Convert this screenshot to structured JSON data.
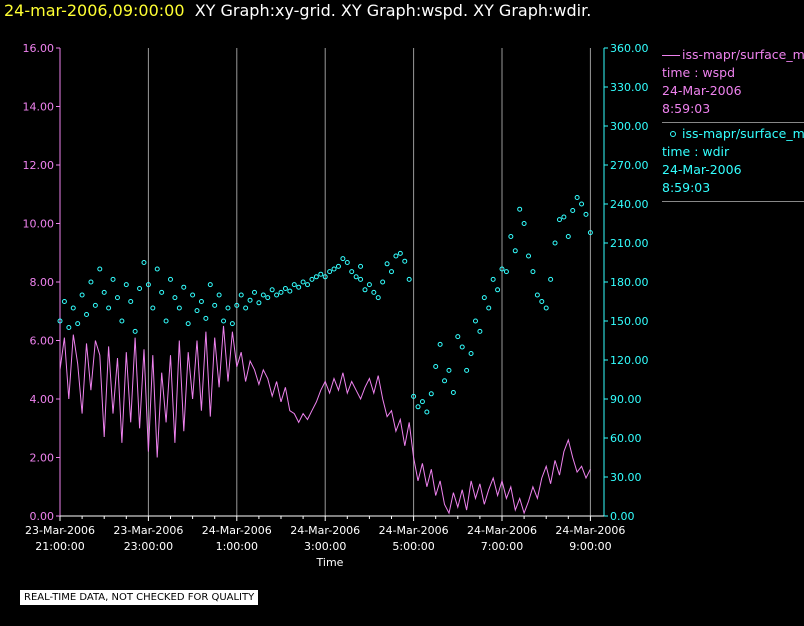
{
  "title": {
    "date": "24-mar-2006,09:00:00",
    "rest": "XY Graph:xy-grid.  XY Graph:wspd.  XY Graph:wdir."
  },
  "legend": {
    "series1": {
      "name": "iss-mapr/surface_m",
      "line2": "time : wspd",
      "line3": "24-Mar-2006",
      "line4": "8:59:03"
    },
    "series2": {
      "name": "iss-mapr/surface_m",
      "line2": "time : wdir",
      "line3": "24-Mar-2006",
      "line4": "8:59:03"
    }
  },
  "quality_note": "REAL-TIME DATA, NOT CHECKED FOR QUALITY",
  "colors": {
    "wspd": "#ee82ee",
    "wdir": "#33ffff",
    "grid": "#9a9a9a",
    "axis": "#ffffff",
    "date": "#ffff33"
  },
  "chart_data": {
    "type": "line",
    "xlabel": "Time",
    "x_ticks": [
      {
        "hours": 0,
        "date": "23-Mar-2006",
        "time": "21:00:00"
      },
      {
        "hours": 2,
        "date": "23-Mar-2006",
        "time": "23:00:00"
      },
      {
        "hours": 4,
        "date": "24-Mar-2006",
        "time": "1:00:00"
      },
      {
        "hours": 6,
        "date": "24-Mar-2006",
        "time": "3:00:00"
      },
      {
        "hours": 8,
        "date": "24-Mar-2006",
        "time": "5:00:00"
      },
      {
        "hours": 10,
        "date": "24-Mar-2006",
        "time": "7:00:00"
      },
      {
        "hours": 12,
        "date": "24-Mar-2006",
        "time": "9:00:00"
      }
    ],
    "xlim_hours": [
      0,
      12.2
    ],
    "y_left": {
      "ylim": [
        0,
        16
      ],
      "ticks": [
        "0.00",
        "2.00",
        "4.00",
        "6.00",
        "8.00",
        "10.00",
        "12.00",
        "14.00",
        "16.00"
      ]
    },
    "y_right": {
      "ylim": [
        0,
        360
      ],
      "ticks": [
        "0.00",
        "30.00",
        "60.00",
        "90.00",
        "120.00",
        "150.00",
        "180.00",
        "210.00",
        "240.00",
        "270.00",
        "300.00",
        "330.00",
        "360.00"
      ]
    },
    "grid": "vertical",
    "series": [
      {
        "key": "wspd",
        "axis": "left",
        "style": "line",
        "points": [
          [
            0.0,
            5.0
          ],
          [
            0.1,
            6.1
          ],
          [
            0.2,
            4.0
          ],
          [
            0.3,
            6.2
          ],
          [
            0.4,
            5.2
          ],
          [
            0.5,
            3.5
          ],
          [
            0.6,
            5.9
          ],
          [
            0.7,
            4.3
          ],
          [
            0.8,
            6.0
          ],
          [
            0.9,
            5.5
          ],
          [
            1.0,
            2.7
          ],
          [
            1.1,
            5.8
          ],
          [
            1.2,
            3.5
          ],
          [
            1.3,
            5.4
          ],
          [
            1.4,
            2.5
          ],
          [
            1.5,
            5.6
          ],
          [
            1.6,
            3.2
          ],
          [
            1.7,
            6.1
          ],
          [
            1.8,
            3.0
          ],
          [
            1.9,
            5.7
          ],
          [
            2.0,
            2.2
          ],
          [
            2.1,
            5.5
          ],
          [
            2.2,
            2.0
          ],
          [
            2.3,
            4.9
          ],
          [
            2.4,
            3.2
          ],
          [
            2.5,
            5.5
          ],
          [
            2.6,
            2.5
          ],
          [
            2.7,
            6.0
          ],
          [
            2.8,
            2.9
          ],
          [
            2.9,
            5.6
          ],
          [
            3.0,
            4.0
          ],
          [
            3.1,
            6.0
          ],
          [
            3.2,
            3.6
          ],
          [
            3.3,
            6.3
          ],
          [
            3.4,
            3.4
          ],
          [
            3.5,
            6.1
          ],
          [
            3.6,
            4.4
          ],
          [
            3.7,
            6.5
          ],
          [
            3.8,
            4.6
          ],
          [
            3.9,
            6.3
          ],
          [
            4.0,
            5.1
          ],
          [
            4.1,
            5.6
          ],
          [
            4.2,
            4.6
          ],
          [
            4.3,
            5.3
          ],
          [
            4.4,
            5.0
          ],
          [
            4.5,
            4.5
          ],
          [
            4.6,
            5.0
          ],
          [
            4.7,
            4.7
          ],
          [
            4.8,
            4.1
          ],
          [
            4.9,
            4.6
          ],
          [
            5.0,
            3.9
          ],
          [
            5.1,
            4.4
          ],
          [
            5.2,
            3.6
          ],
          [
            5.3,
            3.5
          ],
          [
            5.4,
            3.2
          ],
          [
            5.5,
            3.5
          ],
          [
            5.6,
            3.3
          ],
          [
            5.7,
            3.6
          ],
          [
            5.8,
            3.9
          ],
          [
            5.9,
            4.3
          ],
          [
            6.0,
            4.6
          ],
          [
            6.1,
            4.2
          ],
          [
            6.2,
            4.7
          ],
          [
            6.3,
            4.3
          ],
          [
            6.4,
            4.9
          ],
          [
            6.5,
            4.2
          ],
          [
            6.6,
            4.6
          ],
          [
            6.7,
            4.3
          ],
          [
            6.8,
            4.0
          ],
          [
            6.9,
            4.4
          ],
          [
            7.0,
            4.7
          ],
          [
            7.1,
            4.2
          ],
          [
            7.2,
            4.8
          ],
          [
            7.3,
            4.0
          ],
          [
            7.4,
            3.4
          ],
          [
            7.5,
            3.6
          ],
          [
            7.6,
            2.9
          ],
          [
            7.7,
            3.3
          ],
          [
            7.8,
            2.4
          ],
          [
            7.9,
            3.2
          ],
          [
            8.0,
            2.0
          ],
          [
            8.1,
            1.2
          ],
          [
            8.2,
            1.8
          ],
          [
            8.3,
            1.0
          ],
          [
            8.4,
            1.6
          ],
          [
            8.5,
            0.7
          ],
          [
            8.6,
            1.2
          ],
          [
            8.7,
            0.4
          ],
          [
            8.8,
            0.1
          ],
          [
            8.9,
            0.8
          ],
          [
            9.0,
            0.3
          ],
          [
            9.1,
            0.9
          ],
          [
            9.2,
            0.2
          ],
          [
            9.3,
            1.2
          ],
          [
            9.4,
            0.6
          ],
          [
            9.5,
            1.1
          ],
          [
            9.6,
            0.4
          ],
          [
            9.7,
            0.9
          ],
          [
            9.8,
            1.3
          ],
          [
            9.9,
            0.7
          ],
          [
            10.0,
            1.2
          ],
          [
            10.1,
            0.6
          ],
          [
            10.2,
            1.0
          ],
          [
            10.3,
            0.2
          ],
          [
            10.4,
            0.6
          ],
          [
            10.5,
            0.1
          ],
          [
            10.6,
            0.5
          ],
          [
            10.7,
            1.0
          ],
          [
            10.8,
            0.6
          ],
          [
            10.9,
            1.3
          ],
          [
            11.0,
            1.7
          ],
          [
            11.1,
            1.1
          ],
          [
            11.2,
            1.9
          ],
          [
            11.3,
            1.4
          ],
          [
            11.4,
            2.2
          ],
          [
            11.5,
            2.6
          ],
          [
            11.6,
            2.0
          ],
          [
            11.7,
            1.5
          ],
          [
            11.8,
            1.7
          ],
          [
            11.9,
            1.3
          ],
          [
            12.0,
            1.6
          ]
        ]
      },
      {
        "key": "wdir",
        "axis": "right",
        "style": "dots",
        "points": [
          [
            0.0,
            150
          ],
          [
            0.1,
            165
          ],
          [
            0.2,
            145
          ],
          [
            0.3,
            160
          ],
          [
            0.4,
            148
          ],
          [
            0.5,
            170
          ],
          [
            0.6,
            155
          ],
          [
            0.7,
            180
          ],
          [
            0.8,
            162
          ],
          [
            0.9,
            190
          ],
          [
            1.0,
            172
          ],
          [
            1.1,
            160
          ],
          [
            1.2,
            182
          ],
          [
            1.3,
            168
          ],
          [
            1.4,
            150
          ],
          [
            1.5,
            178
          ],
          [
            1.6,
            165
          ],
          [
            1.7,
            142
          ],
          [
            1.8,
            175
          ],
          [
            1.9,
            195
          ],
          [
            2.0,
            178
          ],
          [
            2.1,
            160
          ],
          [
            2.2,
            190
          ],
          [
            2.3,
            172
          ],
          [
            2.4,
            150
          ],
          [
            2.5,
            182
          ],
          [
            2.6,
            168
          ],
          [
            2.7,
            160
          ],
          [
            2.8,
            176
          ],
          [
            2.9,
            148
          ],
          [
            3.0,
            170
          ],
          [
            3.1,
            158
          ],
          [
            3.2,
            165
          ],
          [
            3.3,
            152
          ],
          [
            3.4,
            178
          ],
          [
            3.5,
            162
          ],
          [
            3.6,
            170
          ],
          [
            3.7,
            150
          ],
          [
            3.8,
            160
          ],
          [
            3.9,
            148
          ],
          [
            4.0,
            162
          ],
          [
            4.1,
            170
          ],
          [
            4.2,
            160
          ],
          [
            4.3,
            166
          ],
          [
            4.4,
            172
          ],
          [
            4.5,
            164
          ],
          [
            4.6,
            170
          ],
          [
            4.7,
            168
          ],
          [
            4.8,
            174
          ],
          [
            4.9,
            170
          ],
          [
            5.0,
            172
          ],
          [
            5.1,
            175
          ],
          [
            5.2,
            173
          ],
          [
            5.3,
            178
          ],
          [
            5.4,
            176
          ],
          [
            5.5,
            180
          ],
          [
            5.6,
            178
          ],
          [
            5.7,
            182
          ],
          [
            5.8,
            184
          ],
          [
            5.9,
            186
          ],
          [
            6.0,
            184
          ],
          [
            6.1,
            188
          ],
          [
            6.2,
            190
          ],
          [
            6.3,
            192
          ],
          [
            6.4,
            198
          ],
          [
            6.5,
            195
          ],
          [
            6.6,
            188
          ],
          [
            6.7,
            184
          ],
          [
            6.8,
            182
          ],
          [
            6.8,
            192
          ],
          [
            6.9,
            174
          ],
          [
            7.0,
            178
          ],
          [
            7.1,
            172
          ],
          [
            7.2,
            168
          ],
          [
            7.3,
            180
          ],
          [
            7.4,
            194
          ],
          [
            7.5,
            188
          ],
          [
            7.6,
            200
          ],
          [
            7.7,
            202
          ],
          [
            7.8,
            196
          ],
          [
            7.9,
            182
          ],
          [
            8.0,
            92
          ],
          [
            8.1,
            84
          ],
          [
            8.2,
            88
          ],
          [
            8.3,
            80
          ],
          [
            8.4,
            94
          ],
          [
            8.5,
            115
          ],
          [
            8.6,
            132
          ],
          [
            8.7,
            104
          ],
          [
            8.8,
            112
          ],
          [
            8.9,
            95
          ],
          [
            9.0,
            138
          ],
          [
            9.1,
            130
          ],
          [
            9.2,
            112
          ],
          [
            9.3,
            125
          ],
          [
            9.4,
            150
          ],
          [
            9.5,
            142
          ],
          [
            9.6,
            168
          ],
          [
            9.7,
            160
          ],
          [
            9.8,
            182
          ],
          [
            9.9,
            174
          ],
          [
            10.0,
            190
          ],
          [
            10.1,
            188
          ],
          [
            10.2,
            215
          ],
          [
            10.3,
            204
          ],
          [
            10.4,
            236
          ],
          [
            10.5,
            225
          ],
          [
            10.6,
            200
          ],
          [
            10.7,
            188
          ],
          [
            10.8,
            170
          ],
          [
            10.9,
            165
          ],
          [
            11.0,
            160
          ],
          [
            11.1,
            182
          ],
          [
            11.2,
            210
          ],
          [
            11.3,
            228
          ],
          [
            11.4,
            230
          ],
          [
            11.5,
            215
          ],
          [
            11.6,
            235
          ],
          [
            11.7,
            245
          ],
          [
            11.8,
            240
          ],
          [
            11.9,
            232
          ],
          [
            12.0,
            218
          ]
        ]
      }
    ]
  }
}
